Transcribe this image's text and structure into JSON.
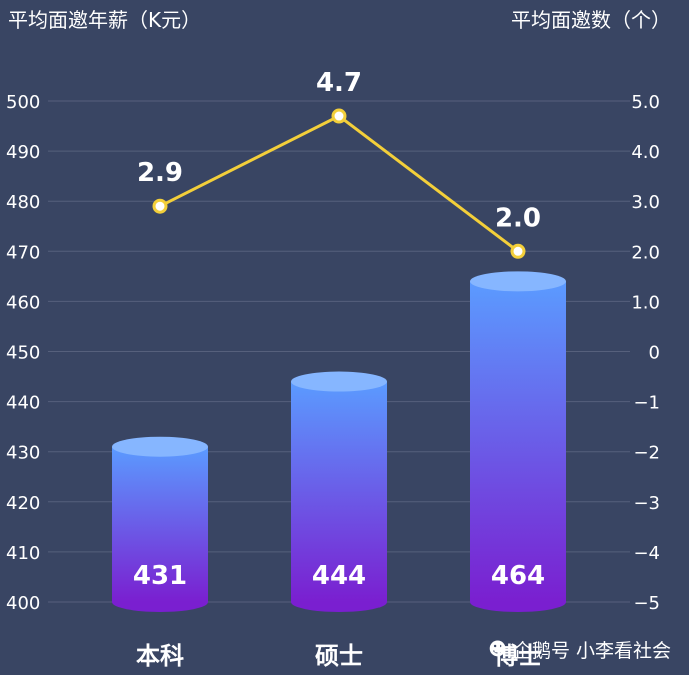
{
  "colors": {
    "background": "#394563",
    "bar_top": "#5b9bff",
    "bar_bottom": "#7a1fd0",
    "line": "#f3cf3a",
    "text": "#ffffff"
  },
  "watermark": {
    "text": "企鹅号 小李看社会",
    "icon": "penguin-icon"
  },
  "chart_data": {
    "type": "bar",
    "categories": [
      "本科",
      "硕士",
      "博士"
    ],
    "series": [
      {
        "name": "平均面邀年薪（K元）",
        "type": "bar",
        "axis": "left",
        "values": [
          431,
          444,
          464
        ]
      },
      {
        "name": "平均面邀数（个）",
        "type": "line",
        "axis": "right",
        "values": [
          2.9,
          4.7,
          2.0
        ]
      }
    ],
    "left_axis": {
      "label": "平均面邀年薪（K元）",
      "ylim": [
        400,
        500
      ],
      "ticks": [
        "400",
        "410",
        "420",
        "430",
        "440",
        "450",
        "460",
        "470",
        "480",
        "490",
        "500"
      ]
    },
    "right_axis": {
      "label": "平均面邀数（个）",
      "ylim": [
        -5,
        5
      ],
      "ticks": [
        "−5",
        "−4",
        "−3",
        "−2",
        "−1",
        "0",
        "1.0",
        "2.0",
        "3.0",
        "4.0",
        "5.0"
      ]
    },
    "bar_labels": [
      "431",
      "444",
      "464"
    ],
    "line_labels": [
      "2.9",
      "4.7",
      "2.0"
    ],
    "bar_style": "cylinder",
    "grid": true,
    "legend": "none"
  }
}
